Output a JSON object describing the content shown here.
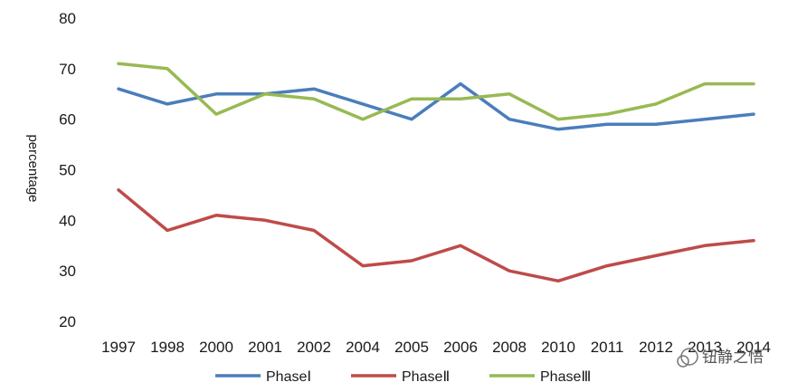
{
  "chart_data": {
    "type": "line",
    "categories": [
      "1997",
      "1998",
      "2000",
      "2001",
      "2002",
      "2004",
      "2005",
      "2006",
      "2008",
      "2010",
      "2011",
      "2012",
      "2013",
      "2014"
    ],
    "series": [
      {
        "name": "PhaseⅠ",
        "color": "#4a7ebb",
        "values": [
          66,
          63,
          65,
          65,
          66,
          63,
          60,
          67,
          60,
          58,
          59,
          59,
          60,
          61
        ]
      },
      {
        "name": "PhaseⅡ",
        "color": "#be4b48",
        "values": [
          46,
          38,
          41,
          40,
          38,
          31,
          32,
          35,
          30,
          28,
          31,
          33,
          35,
          36
        ]
      },
      {
        "name": "PhaseⅢ",
        "color": "#98b954",
        "values": [
          71,
          70,
          61,
          65,
          64,
          60,
          64,
          64,
          65,
          60,
          61,
          63,
          67,
          67
        ]
      }
    ],
    "yticks": [
      20,
      30,
      40,
      50,
      60,
      70,
      80
    ],
    "ylim": [
      20,
      80
    ],
    "ylabel": "percentage",
    "grid": false,
    "legend_position": "bottom"
  },
  "watermark": {
    "text": "钮静之悟"
  }
}
